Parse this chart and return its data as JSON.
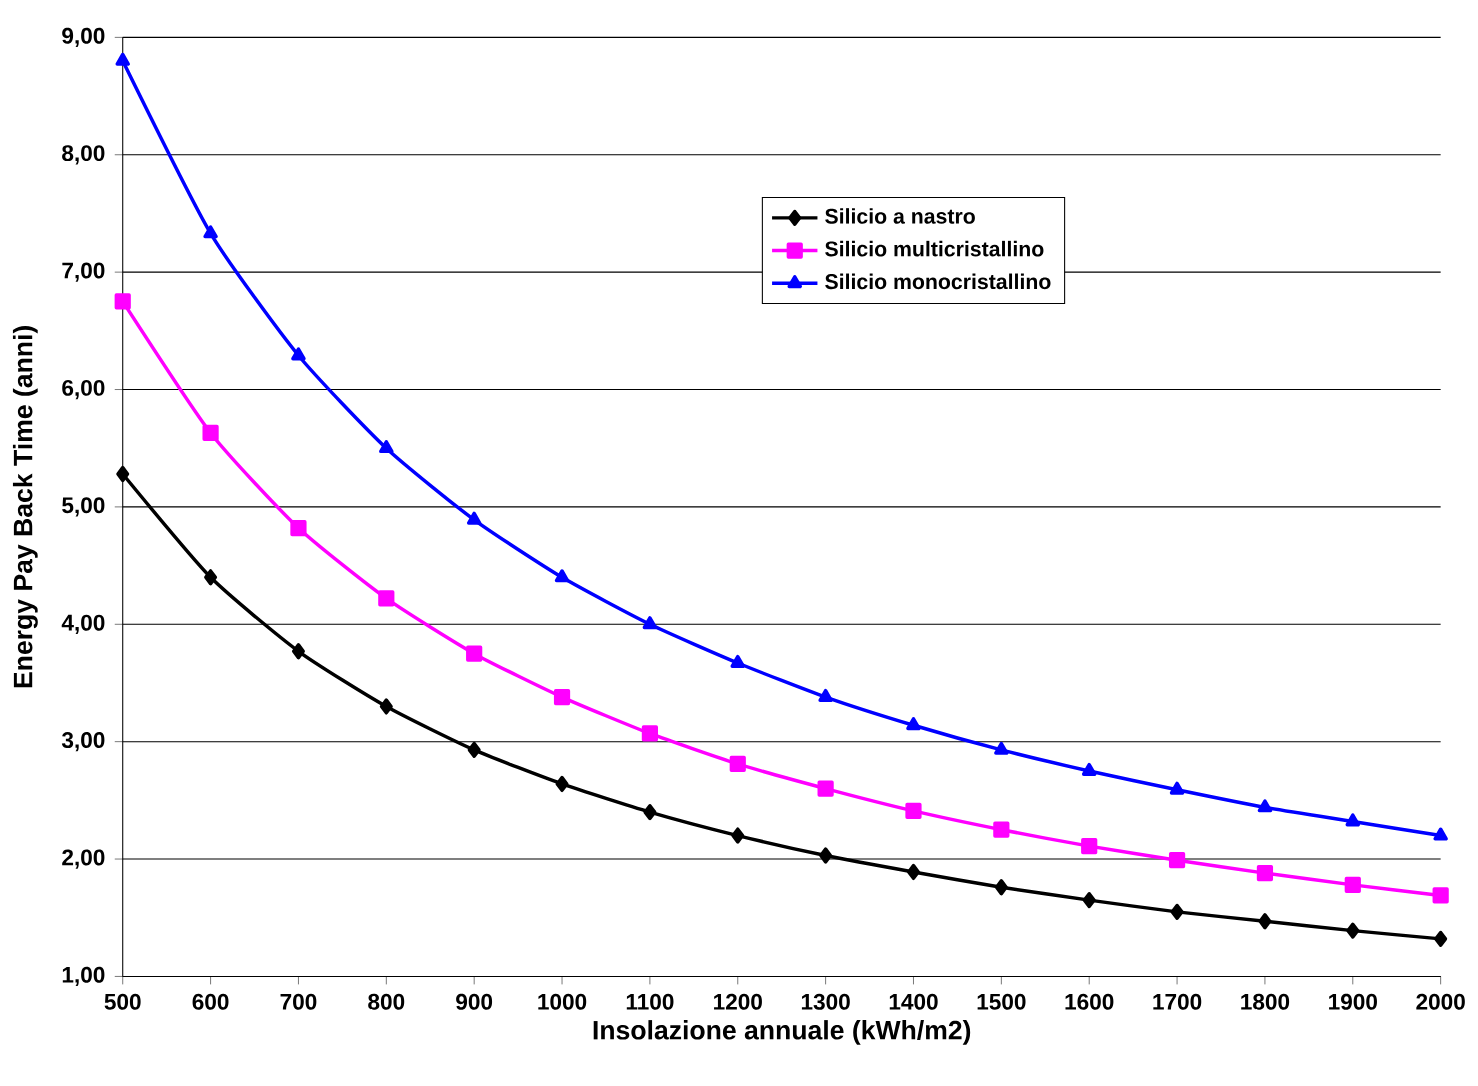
{
  "chart_data": {
    "type": "line",
    "xlabel": "Insolazione annuale (kWh/m2)",
    "ylabel": "Energy Pay Back Time (anni)",
    "x": [
      500,
      600,
      700,
      800,
      900,
      1000,
      1100,
      1200,
      1300,
      1400,
      1500,
      1600,
      1700,
      1800,
      1900,
      2000
    ],
    "series": [
      {
        "name": "Silicio a nastro",
        "color": "#000000",
        "marker": "diamond",
        "values": [
          5.28,
          4.4,
          3.77,
          3.3,
          2.93,
          2.64,
          2.4,
          2.2,
          2.03,
          1.89,
          1.76,
          1.65,
          1.55,
          1.47,
          1.39,
          1.32
        ]
      },
      {
        "name": "Silicio multicristallino",
        "color": "#ff00ff",
        "marker": "square",
        "values": [
          6.75,
          5.63,
          4.82,
          4.22,
          3.75,
          3.38,
          3.07,
          2.81,
          2.6,
          2.41,
          2.25,
          2.11,
          1.99,
          1.88,
          1.78,
          1.69
        ]
      },
      {
        "name": "Silicio monocristallino",
        "color": "#0000ff",
        "marker": "triangle",
        "values": [
          8.8,
          7.33,
          6.29,
          5.5,
          4.89,
          4.4,
          4.0,
          3.67,
          3.38,
          3.14,
          2.93,
          2.75,
          2.59,
          2.44,
          2.32,
          2.2
        ]
      }
    ],
    "xlim": [
      500,
      2000
    ],
    "xticks": [
      500,
      600,
      700,
      800,
      900,
      1000,
      1100,
      1200,
      1300,
      1400,
      1500,
      1600,
      1700,
      1800,
      1900,
      2000
    ],
    "ylim": [
      1,
      9
    ],
    "yticks": [
      {
        "value": 1,
        "label": "1,00"
      },
      {
        "value": 2,
        "label": "2,00"
      },
      {
        "value": 3,
        "label": "3,00"
      },
      {
        "value": 4,
        "label": "4,00"
      },
      {
        "value": 5,
        "label": "5,00"
      },
      {
        "value": 6,
        "label": "6,00"
      },
      {
        "value": 7,
        "label": "7,00"
      },
      {
        "value": 8,
        "label": "8,00"
      },
      {
        "value": 9,
        "label": "9,00"
      }
    ],
    "grid": "y",
    "legend": "top",
    "line_style": "solid"
  }
}
